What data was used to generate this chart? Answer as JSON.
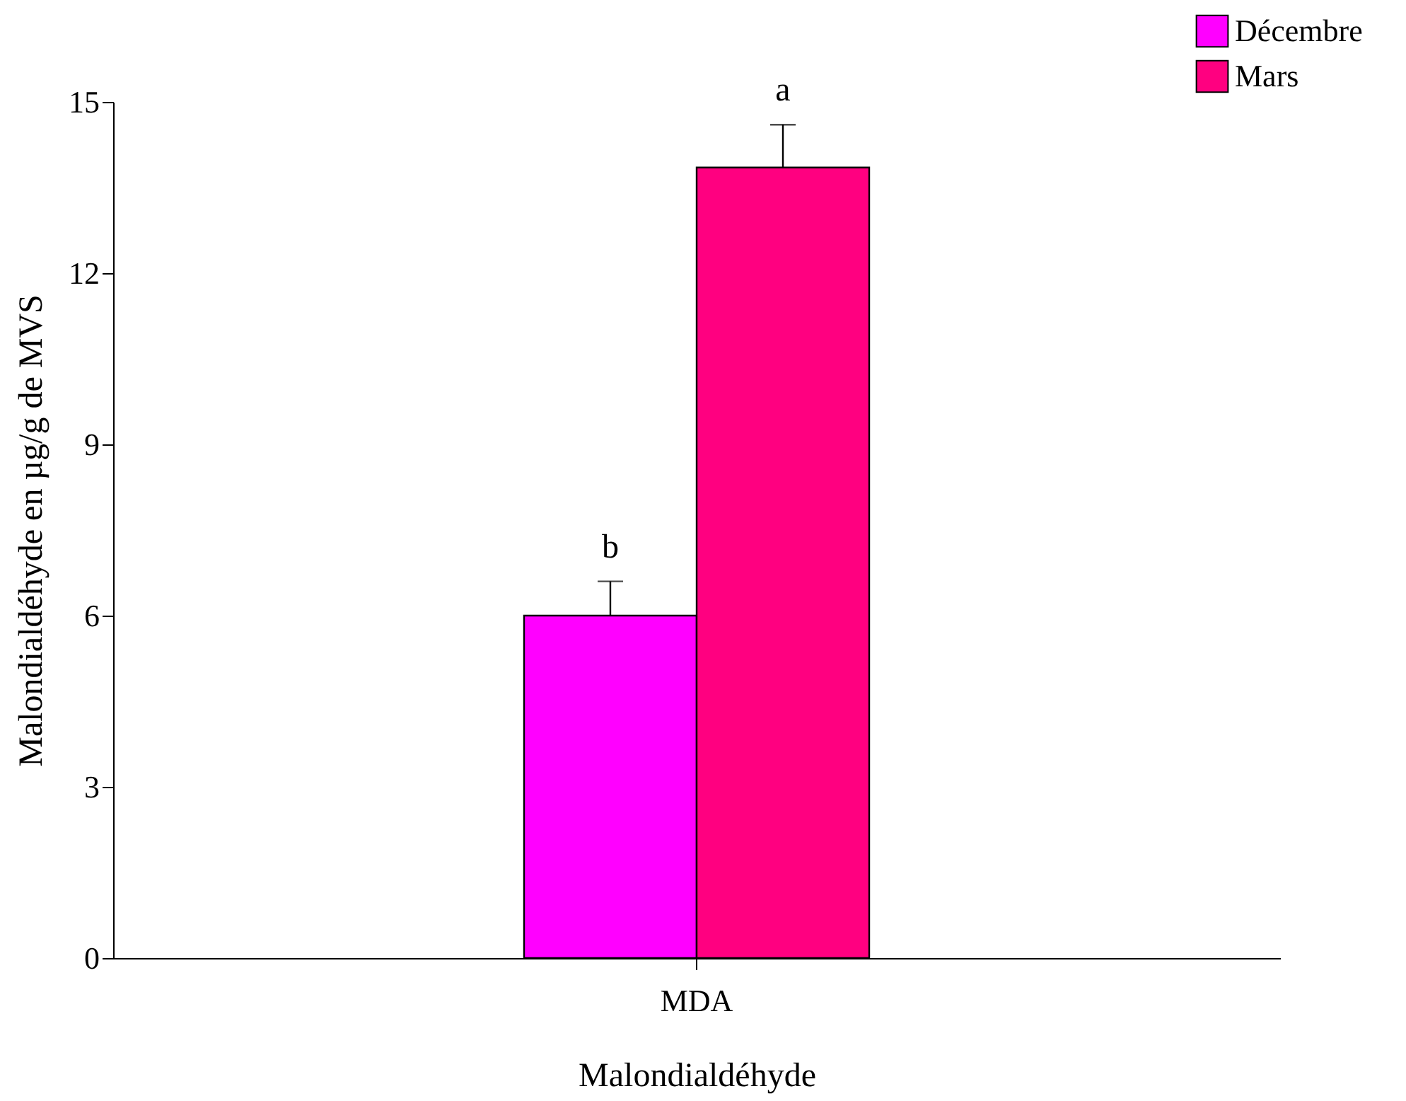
{
  "chart_data": {
    "type": "bar",
    "xlabel": "Malondialdéhyde",
    "ylabel": "Malondialdéhyde en µg/g de MVS",
    "categories": [
      "MDA"
    ],
    "series": [
      {
        "name": "Décembre",
        "color": "#ff00ff",
        "values": [
          6.0
        ],
        "errors": [
          0.6
        ]
      },
      {
        "name": "Mars",
        "color": "#ff0080",
        "values": [
          13.85
        ],
        "errors": [
          0.75
        ]
      }
    ],
    "ylim": [
      0,
      15
    ],
    "yticks": [
      0,
      3,
      6,
      9,
      12,
      15
    ],
    "grid": false,
    "legend": "top right",
    "annotations": [
      "b",
      "a"
    ]
  }
}
